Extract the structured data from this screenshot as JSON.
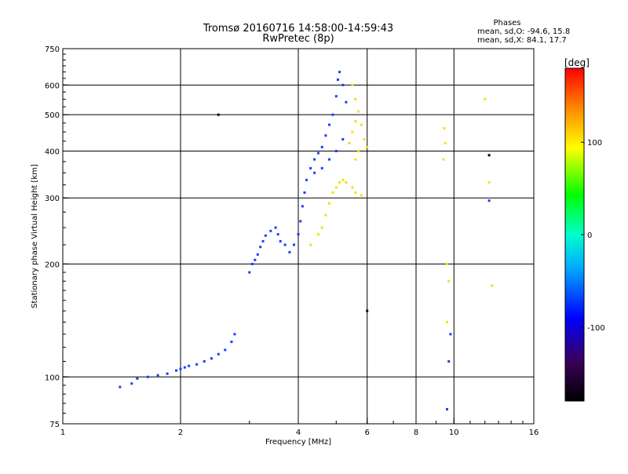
{
  "chart_data": {
    "type": "scatter",
    "title": "Tromsø 20160716 14:58:00-14:59:43",
    "subtitle": "RwPretec (8p)",
    "xlabel": "Frequency [MHz]",
    "ylabel": "Stationary phase Virtual Height [km]",
    "x_scale": "log",
    "y_scale": "log",
    "xlim": [
      1,
      16
    ],
    "ylim": [
      75,
      750
    ],
    "x_ticks": [
      1,
      2,
      4,
      6,
      8,
      10,
      16
    ],
    "x_tick_labels": [
      "1",
      "2",
      "4",
      "6",
      "8",
      "10",
      "16"
    ],
    "y_ticks": [
      75,
      100,
      200,
      300,
      400,
      500,
      600,
      750
    ],
    "y_tick_labels": [
      "75",
      "100",
      "200",
      "300",
      "400",
      "500",
      "600",
      "750"
    ],
    "grid": true,
    "stats": {
      "heading": "Phases",
      "line_o": "mean, sd,O: -94.6, 15.8",
      "line_x": "mean, sd,X:  84.1, 17.7"
    },
    "colorbar": {
      "label": "[deg]",
      "range": [
        -180,
        180
      ],
      "ticks": [
        100,
        0,
        -100
      ],
      "tick_labels": [
        "100",
        "0",
        "-100"
      ]
    },
    "series": [
      {
        "name": "O",
        "color": "#1a3cff",
        "points": [
          [
            1.4,
            94
          ],
          [
            1.5,
            96
          ],
          [
            1.55,
            99
          ],
          [
            1.65,
            100
          ],
          [
            1.75,
            101
          ],
          [
            1.85,
            102
          ],
          [
            1.95,
            104
          ],
          [
            2.0,
            105
          ],
          [
            2.05,
            106
          ],
          [
            2.1,
            107
          ],
          [
            2.2,
            108
          ],
          [
            2.3,
            110
          ],
          [
            2.4,
            112
          ],
          [
            2.5,
            115
          ],
          [
            2.6,
            118
          ],
          [
            2.7,
            124
          ],
          [
            2.75,
            130
          ],
          [
            3.0,
            190
          ],
          [
            3.05,
            200
          ],
          [
            3.1,
            205
          ],
          [
            3.15,
            212
          ],
          [
            3.2,
            222
          ],
          [
            3.25,
            230
          ],
          [
            3.3,
            238
          ],
          [
            3.4,
            245
          ],
          [
            3.5,
            250
          ],
          [
            3.55,
            240
          ],
          [
            3.6,
            230
          ],
          [
            3.7,
            225
          ],
          [
            3.8,
            215
          ],
          [
            3.9,
            225
          ],
          [
            4.0,
            240
          ],
          [
            4.05,
            260
          ],
          [
            4.1,
            285
          ],
          [
            4.15,
            310
          ],
          [
            4.2,
            335
          ],
          [
            4.3,
            360
          ],
          [
            4.4,
            380
          ],
          [
            4.5,
            395
          ],
          [
            4.6,
            410
          ],
          [
            4.7,
            440
          ],
          [
            4.8,
            470
          ],
          [
            4.9,
            500
          ],
          [
            5.0,
            560
          ],
          [
            5.05,
            620
          ],
          [
            5.1,
            650
          ],
          [
            5.2,
            600
          ],
          [
            5.3,
            540
          ],
          [
            4.6,
            360
          ],
          [
            4.8,
            380
          ],
          [
            5.0,
            400
          ],
          [
            5.2,
            430
          ],
          [
            4.4,
            350
          ]
        ]
      },
      {
        "name": "X",
        "color": "#f2e200",
        "points": [
          [
            4.3,
            225
          ],
          [
            4.5,
            240
          ],
          [
            4.6,
            250
          ],
          [
            4.7,
            270
          ],
          [
            4.8,
            290
          ],
          [
            4.9,
            310
          ],
          [
            5.0,
            320
          ],
          [
            5.1,
            330
          ],
          [
            5.2,
            335
          ],
          [
            5.3,
            330
          ],
          [
            5.5,
            320
          ],
          [
            5.6,
            310
          ],
          [
            5.8,
            305
          ],
          [
            5.4,
            420
          ],
          [
            5.5,
            450
          ],
          [
            5.6,
            480
          ],
          [
            5.7,
            510
          ],
          [
            5.8,
            470
          ],
          [
            5.9,
            430
          ],
          [
            6.0,
            410
          ],
          [
            5.6,
            380
          ],
          [
            5.7,
            400
          ],
          [
            5.5,
            600
          ],
          [
            5.6,
            550
          ],
          [
            9.4,
            380
          ],
          [
            9.5,
            420
          ],
          [
            9.45,
            460
          ],
          [
            9.6,
            200
          ],
          [
            9.7,
            180
          ],
          [
            12.0,
            550
          ],
          [
            12.3,
            330
          ],
          [
            12.5,
            175
          ],
          [
            9.6,
            140
          ]
        ]
      },
      {
        "name": "",
        "color": "#1a3cff",
        "points": [
          [
            9.7,
            110
          ],
          [
            9.6,
            82
          ],
          [
            12.3,
            295
          ],
          [
            9.8,
            130
          ]
        ]
      },
      {
        "name": "",
        "color": "#000000",
        "points": [
          [
            2.5,
            500
          ],
          [
            12.3,
            390
          ],
          [
            6.0,
            150
          ]
        ]
      }
    ]
  }
}
